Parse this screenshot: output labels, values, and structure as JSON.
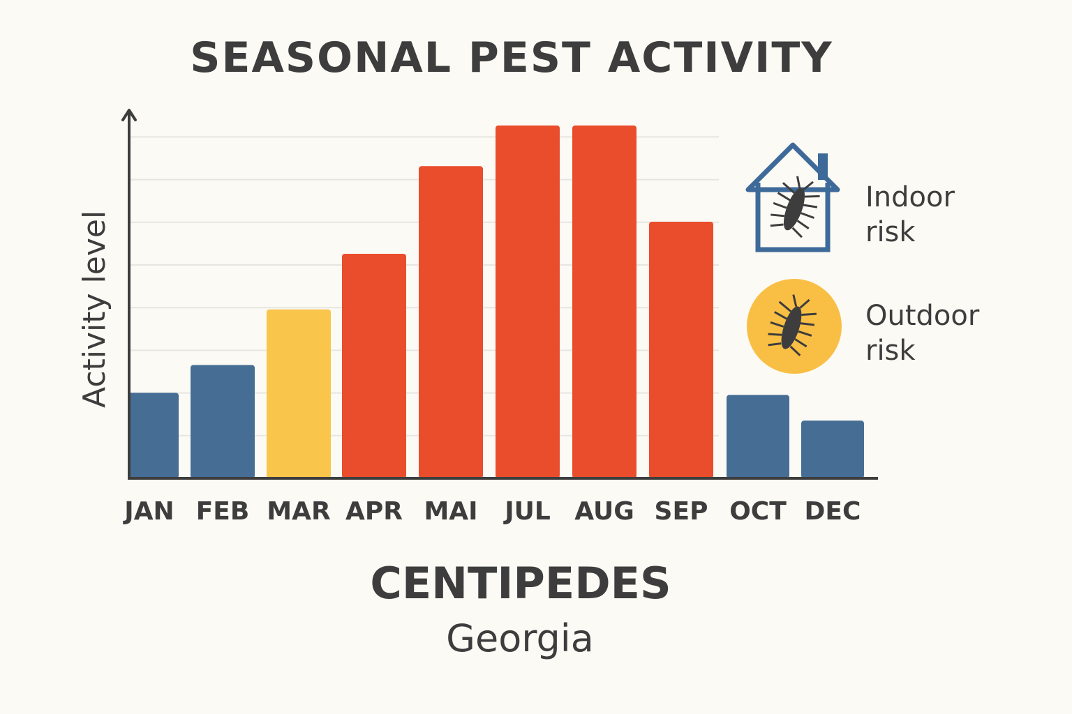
{
  "title": "SEASONAL PEST ACTIVITY",
  "subject": "CENTIPEDES",
  "region": "Georgia",
  "legend": {
    "indoor": {
      "line1": "Indoor",
      "line2": "risk",
      "icon": "house-centipede-icon",
      "color": "#3e6a9a"
    },
    "outdoor": {
      "line1": "Outdoor",
      "line2": "risk",
      "icon": "sun-centipede-icon",
      "color": "#f9bf45"
    }
  },
  "colors": {
    "low": "#466e95",
    "moderate": "#f9c54b",
    "high": "#ea4d2c",
    "axis": "#3d3d3d",
    "grid": "#e6e6e2"
  },
  "chart_data": {
    "type": "bar",
    "ylabel": "Activity level",
    "xlabel": "",
    "ylim": [
      0,
      8.7
    ],
    "grid": true,
    "categories": [
      "JAN",
      "FEB",
      "MAR",
      "APR",
      "MAI",
      "JUL",
      "AUG",
      "SEP",
      "OCT",
      "DEC"
    ],
    "values": [
      2.0,
      2.65,
      3.95,
      5.25,
      7.3,
      8.25,
      8.25,
      6.0,
      1.95,
      1.35
    ],
    "levels": [
      "low",
      "low",
      "moderate",
      "high",
      "high",
      "high",
      "high",
      "high",
      "low",
      "low"
    ]
  }
}
